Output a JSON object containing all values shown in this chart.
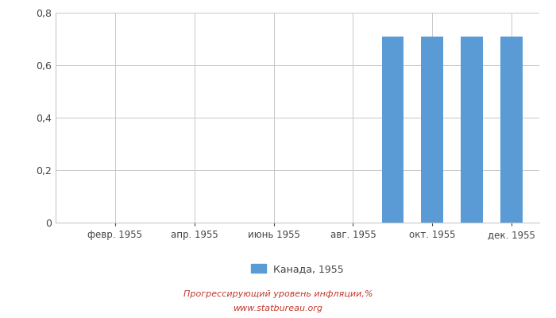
{
  "months": [
    1,
    2,
    3,
    4,
    5,
    6,
    7,
    8,
    9,
    10,
    11,
    12
  ],
  "values": [
    0,
    0,
    0,
    0,
    0,
    0,
    0,
    0,
    0.71,
    0.71,
    0.71,
    0.71
  ],
  "bar_color": "#5b9bd5",
  "xtick_labels": [
    "февр. 1955",
    "апр. 1955",
    "июнь 1955",
    "авг. 1955",
    "окт. 1955",
    "дек. 1955"
  ],
  "xtick_positions": [
    2,
    4,
    6,
    8,
    10,
    12
  ],
  "ylim": [
    0,
    0.8
  ],
  "yticks": [
    0,
    0.2,
    0.4,
    0.6,
    0.8
  ],
  "legend_label": "Канада, 1955",
  "footer_line1": "Прогрессирующий уровень инфляции,%",
  "footer_line2": "www.statbureau.org",
  "background_color": "#ffffff",
  "grid_color": "#c8c8c8"
}
